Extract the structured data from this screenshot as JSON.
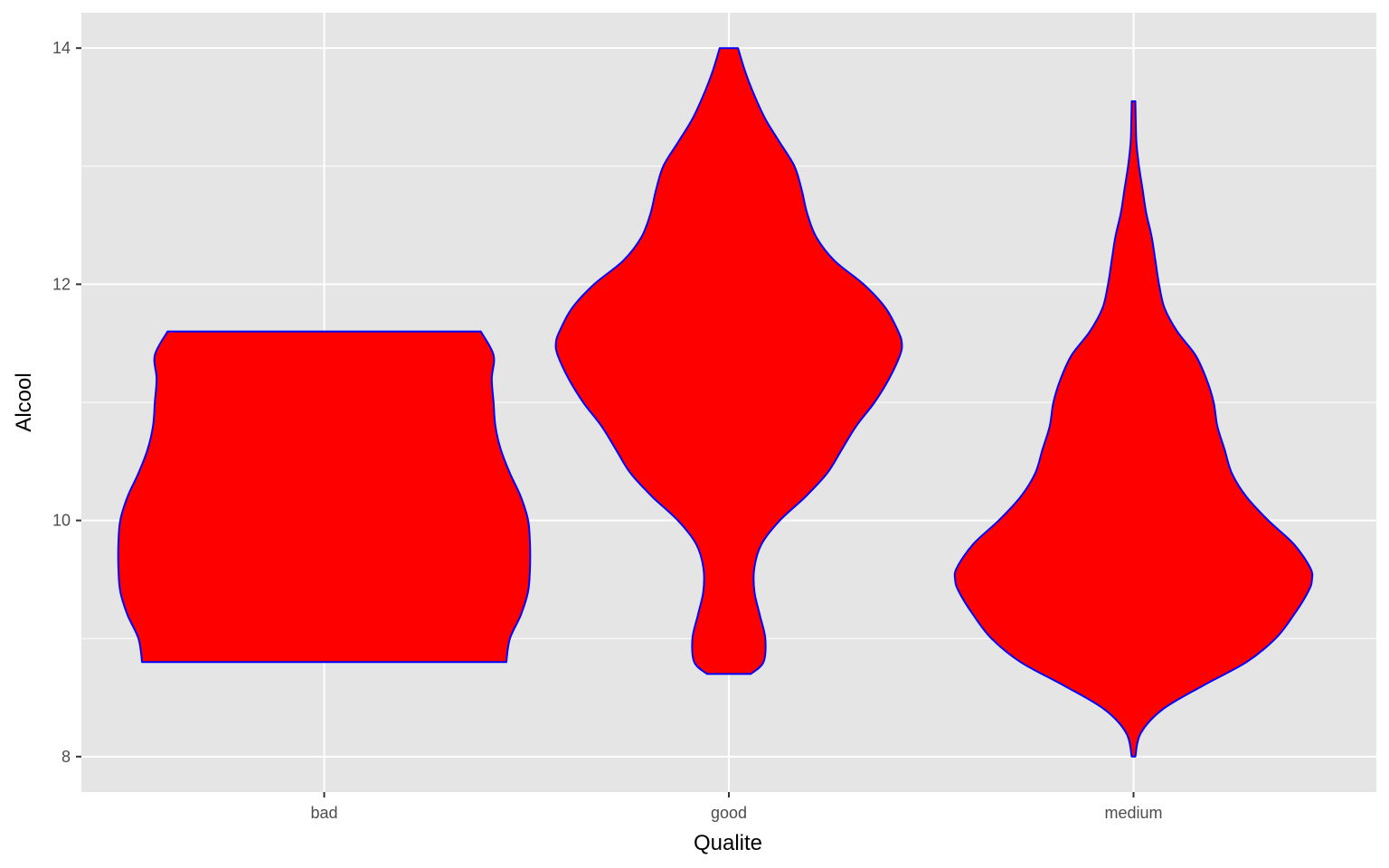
{
  "chart_data": {
    "type": "violin",
    "title": "",
    "xlabel": "Qualite",
    "ylabel": "Alcool",
    "categories": [
      "bad",
      "good",
      "medium"
    ],
    "ylim": [
      7.7,
      14.3
    ],
    "yticks": [
      8,
      10,
      12,
      14
    ],
    "grid": true,
    "legend": "none",
    "colors": {
      "fill": "#ff0000",
      "stroke": "#0000ff",
      "panel": "#e5e5e5",
      "grid": "#ffffff"
    },
    "violins": [
      {
        "category": "bad",
        "min": 8.8,
        "max": 11.6,
        "profile": [
          [
            8.8,
            0.5
          ],
          [
            9.0,
            0.51
          ],
          [
            9.2,
            0.54
          ],
          [
            9.4,
            0.56
          ],
          [
            9.6,
            0.565
          ],
          [
            9.8,
            0.565
          ],
          [
            10.0,
            0.56
          ],
          [
            10.2,
            0.54
          ],
          [
            10.4,
            0.51
          ],
          [
            10.6,
            0.485
          ],
          [
            10.8,
            0.47
          ],
          [
            11.0,
            0.465
          ],
          [
            11.2,
            0.46
          ],
          [
            11.4,
            0.465
          ],
          [
            11.6,
            0.43
          ]
        ]
      },
      {
        "category": "good",
        "min": 8.7,
        "max": 14.0,
        "profile": [
          [
            8.7,
            0.06
          ],
          [
            8.8,
            0.095
          ],
          [
            9.0,
            0.1
          ],
          [
            9.2,
            0.085
          ],
          [
            9.4,
            0.07
          ],
          [
            9.6,
            0.07
          ],
          [
            9.8,
            0.09
          ],
          [
            10.0,
            0.14
          ],
          [
            10.2,
            0.21
          ],
          [
            10.4,
            0.27
          ],
          [
            10.6,
            0.31
          ],
          [
            10.8,
            0.35
          ],
          [
            11.0,
            0.4
          ],
          [
            11.2,
            0.44
          ],
          [
            11.4,
            0.47
          ],
          [
            11.5,
            0.475
          ],
          [
            11.6,
            0.465
          ],
          [
            11.8,
            0.43
          ],
          [
            12.0,
            0.37
          ],
          [
            12.2,
            0.29
          ],
          [
            12.4,
            0.24
          ],
          [
            12.6,
            0.215
          ],
          [
            12.8,
            0.2
          ],
          [
            13.0,
            0.18
          ],
          [
            13.2,
            0.14
          ],
          [
            13.4,
            0.1
          ],
          [
            13.6,
            0.07
          ],
          [
            13.8,
            0.045
          ],
          [
            14.0,
            0.025
          ]
        ]
      },
      {
        "category": "medium",
        "min": 8.0,
        "max": 13.55,
        "profile": [
          [
            8.0,
            0.005
          ],
          [
            8.2,
            0.02
          ],
          [
            8.4,
            0.08
          ],
          [
            8.6,
            0.19
          ],
          [
            8.8,
            0.31
          ],
          [
            9.0,
            0.39
          ],
          [
            9.2,
            0.44
          ],
          [
            9.4,
            0.48
          ],
          [
            9.5,
            0.49
          ],
          [
            9.6,
            0.485
          ],
          [
            9.8,
            0.44
          ],
          [
            10.0,
            0.37
          ],
          [
            10.2,
            0.31
          ],
          [
            10.4,
            0.27
          ],
          [
            10.6,
            0.25
          ],
          [
            10.8,
            0.23
          ],
          [
            11.0,
            0.22
          ],
          [
            11.2,
            0.2
          ],
          [
            11.4,
            0.17
          ],
          [
            11.6,
            0.12
          ],
          [
            11.8,
            0.085
          ],
          [
            12.0,
            0.07
          ],
          [
            12.2,
            0.06
          ],
          [
            12.4,
            0.05
          ],
          [
            12.6,
            0.035
          ],
          [
            12.8,
            0.025
          ],
          [
            13.0,
            0.015
          ],
          [
            13.2,
            0.008
          ],
          [
            13.4,
            0.006
          ],
          [
            13.55,
            0.005
          ]
        ]
      }
    ]
  }
}
